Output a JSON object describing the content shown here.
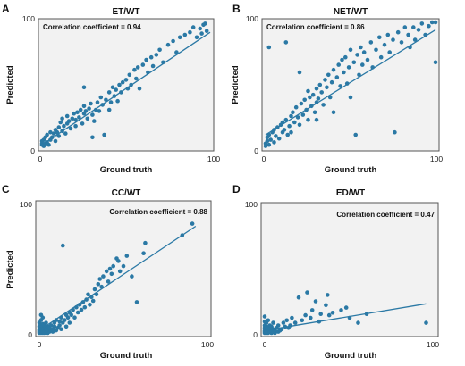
{
  "colors": {
    "point": "#2b79a5",
    "line": "#2b79a5",
    "plot_background": "#f2f2f2",
    "frame": "#555555"
  },
  "chart_data": [
    {
      "type": "scatter",
      "panel_label": "A",
      "title": "ET/WT",
      "xlabel": "Ground truth",
      "ylabel": "Predicted",
      "xlim": [
        0,
        100
      ],
      "ylim": [
        0,
        100
      ],
      "x_ticks": [
        "0",
        "100"
      ],
      "y_ticks": [
        "0",
        "100"
      ],
      "annotation": "Correlation coefficient = 0.94",
      "annotation_position": "top-left",
      "grid": false,
      "fit_line": {
        "x": [
          0,
          100
        ],
        "y": [
          2,
          92
        ]
      },
      "points": [
        [
          0,
          2
        ],
        [
          0,
          3
        ],
        [
          0,
          5
        ],
        [
          1,
          1
        ],
        [
          1,
          6
        ],
        [
          2,
          3
        ],
        [
          2,
          8
        ],
        [
          3,
          4
        ],
        [
          3,
          10
        ],
        [
          4,
          2
        ],
        [
          5,
          6
        ],
        [
          5,
          12
        ],
        [
          6,
          8
        ],
        [
          7,
          11
        ],
        [
          8,
          14
        ],
        [
          8,
          5
        ],
        [
          9,
          12
        ],
        [
          10,
          16
        ],
        [
          10,
          9
        ],
        [
          11,
          20
        ],
        [
          12,
          13
        ],
        [
          13,
          17
        ],
        [
          14,
          11
        ],
        [
          15,
          19
        ],
        [
          15,
          25
        ],
        [
          16,
          21
        ],
        [
          17,
          15
        ],
        [
          18,
          23
        ],
        [
          19,
          27
        ],
        [
          20,
          22
        ],
        [
          20,
          17
        ],
        [
          21,
          28
        ],
        [
          22,
          24
        ],
        [
          23,
          30
        ],
        [
          24,
          19
        ],
        [
          25,
          27
        ],
        [
          25,
          33
        ],
        [
          26,
          29
        ],
        [
          27,
          23
        ],
        [
          28,
          31
        ],
        [
          29,
          35
        ],
        [
          30,
          26
        ],
        [
          30,
          8
        ],
        [
          31,
          21
        ],
        [
          32,
          30
        ],
        [
          33,
          36
        ],
        [
          34,
          29
        ],
        [
          35,
          40
        ],
        [
          36,
          34
        ],
        [
          37,
          10
        ],
        [
          38,
          38
        ],
        [
          40,
          44
        ],
        [
          40,
          30
        ],
        [
          41,
          36
        ],
        [
          42,
          48
        ],
        [
          43,
          41
        ],
        [
          44,
          46
        ],
        [
          45,
          37
        ],
        [
          46,
          50
        ],
        [
          47,
          44
        ],
        [
          48,
          52
        ],
        [
          50,
          54
        ],
        [
          51,
          47
        ],
        [
          52,
          58
        ],
        [
          53,
          50
        ],
        [
          55,
          62
        ],
        [
          56,
          55
        ],
        [
          57,
          64
        ],
        [
          58,
          47
        ],
        [
          60,
          66
        ],
        [
          62,
          70
        ],
        [
          63,
          60
        ],
        [
          65,
          72
        ],
        [
          66,
          65
        ],
        [
          68,
          74
        ],
        [
          70,
          78
        ],
        [
          72,
          68
        ],
        [
          75,
          82
        ],
        [
          78,
          85
        ],
        [
          80,
          76
        ],
        [
          82,
          88
        ],
        [
          85,
          90
        ],
        [
          88,
          92
        ],
        [
          90,
          96
        ],
        [
          92,
          88
        ],
        [
          94,
          95
        ],
        [
          95,
          91
        ],
        [
          96,
          98
        ],
        [
          97,
          99
        ],
        [
          98,
          93
        ],
        [
          25,
          48
        ],
        [
          12,
          23
        ]
      ]
    },
    {
      "type": "scatter",
      "panel_label": "B",
      "title": "NET/WT",
      "xlabel": "Ground truth",
      "ylabel": "Predicted",
      "xlim": [
        0,
        100
      ],
      "ylim": [
        0,
        100
      ],
      "x_ticks": [
        "0",
        "100"
      ],
      "y_ticks": [
        "0",
        "100"
      ],
      "annotation": "Correlation coefficient = 0.86",
      "annotation_position": "top-left",
      "grid": false,
      "fit_line": {
        "x": [
          0,
          100
        ],
        "y": [
          10,
          94
        ]
      },
      "points": [
        [
          0,
          1
        ],
        [
          0,
          3
        ],
        [
          1,
          5
        ],
        [
          1,
          8
        ],
        [
          2,
          2
        ],
        [
          2,
          10
        ],
        [
          3,
          6
        ],
        [
          4,
          12
        ],
        [
          5,
          4
        ],
        [
          5,
          14
        ],
        [
          6,
          9
        ],
        [
          7,
          16
        ],
        [
          8,
          7
        ],
        [
          9,
          18
        ],
        [
          10,
          12
        ],
        [
          10,
          20
        ],
        [
          11,
          14
        ],
        [
          12,
          84
        ],
        [
          12,
          22
        ],
        [
          13,
          10
        ],
        [
          14,
          17
        ],
        [
          15,
          25
        ],
        [
          15,
          12
        ],
        [
          16,
          28
        ],
        [
          17,
          20
        ],
        [
          18,
          32
        ],
        [
          19,
          24
        ],
        [
          20,
          18
        ],
        [
          20,
          60
        ],
        [
          21,
          35
        ],
        [
          22,
          26
        ],
        [
          23,
          38
        ],
        [
          24,
          30
        ],
        [
          25,
          22
        ],
        [
          25,
          45
        ],
        [
          26,
          40
        ],
        [
          27,
          33
        ],
        [
          28,
          42
        ],
        [
          29,
          28
        ],
        [
          30,
          47
        ],
        [
          30,
          36
        ],
        [
          31,
          39
        ],
        [
          32,
          50
        ],
        [
          33,
          44
        ],
        [
          34,
          34
        ],
        [
          35,
          54
        ],
        [
          36,
          48
        ],
        [
          37,
          58
        ],
        [
          38,
          40
        ],
        [
          39,
          52
        ],
        [
          40,
          62
        ],
        [
          40,
          28
        ],
        [
          42,
          56
        ],
        [
          43,
          66
        ],
        [
          44,
          49
        ],
        [
          45,
          70
        ],
        [
          46,
          60
        ],
        [
          47,
          72
        ],
        [
          48,
          51
        ],
        [
          49,
          64
        ],
        [
          50,
          78
        ],
        [
          50,
          40
        ],
        [
          52,
          68
        ],
        [
          53,
          10
        ],
        [
          54,
          74
        ],
        [
          55,
          58
        ],
        [
          56,
          80
        ],
        [
          57,
          66
        ],
        [
          58,
          76
        ],
        [
          60,
          70
        ],
        [
          62,
          84
        ],
        [
          63,
          64
        ],
        [
          65,
          78
        ],
        [
          67,
          88
        ],
        [
          68,
          72
        ],
        [
          70,
          82
        ],
        [
          72,
          90
        ],
        [
          73,
          76
        ],
        [
          75,
          86
        ],
        [
          76,
          12
        ],
        [
          78,
          92
        ],
        [
          80,
          84
        ],
        [
          82,
          96
        ],
        [
          84,
          90
        ],
        [
          85,
          80
        ],
        [
          87,
          96
        ],
        [
          88,
          86
        ],
        [
          90,
          94
        ],
        [
          92,
          99
        ],
        [
          94,
          90
        ],
        [
          96,
          97
        ],
        [
          98,
          100
        ],
        [
          100,
          100
        ],
        [
          100,
          68
        ],
        [
          30,
          22
        ],
        [
          2,
          80
        ]
      ]
    },
    {
      "type": "scatter",
      "panel_label": "C",
      "title": "CC/WT",
      "xlabel": "Ground truth",
      "ylabel": "Predicted",
      "xlim": [
        0,
        100
      ],
      "ylim": [
        0,
        100
      ],
      "x_ticks": [
        "0",
        "100"
      ],
      "y_ticks": [
        "0",
        "100"
      ],
      "annotation": "Correlation coefficient = 0.88",
      "annotation_position": "top-right",
      "grid": false,
      "fit_line": {
        "x": [
          0,
          93
        ],
        "y": [
          2,
          83
        ]
      },
      "points": [
        [
          0,
          0
        ],
        [
          0,
          1
        ],
        [
          0,
          2
        ],
        [
          0,
          3
        ],
        [
          0,
          5
        ],
        [
          0,
          8
        ],
        [
          1,
          0
        ],
        [
          1,
          1
        ],
        [
          1,
          2
        ],
        [
          1,
          4
        ],
        [
          1,
          6
        ],
        [
          1,
          10
        ],
        [
          1,
          14
        ],
        [
          2,
          0
        ],
        [
          2,
          1
        ],
        [
          2,
          3
        ],
        [
          2,
          5
        ],
        [
          2,
          7
        ],
        [
          2,
          12
        ],
        [
          3,
          0
        ],
        [
          3,
          2
        ],
        [
          3,
          4
        ],
        [
          3,
          6
        ],
        [
          4,
          1
        ],
        [
          4,
          3
        ],
        [
          4,
          8
        ],
        [
          5,
          0
        ],
        [
          5,
          2
        ],
        [
          5,
          5
        ],
        [
          6,
          1
        ],
        [
          6,
          4
        ],
        [
          7,
          2
        ],
        [
          7,
          6
        ],
        [
          8,
          1
        ],
        [
          8,
          3
        ],
        [
          9,
          5
        ],
        [
          9,
          8
        ],
        [
          10,
          2
        ],
        [
          10,
          10
        ],
        [
          11,
          4
        ],
        [
          12,
          6
        ],
        [
          12,
          9
        ],
        [
          13,
          3
        ],
        [
          13,
          12
        ],
        [
          14,
          68
        ],
        [
          14,
          8
        ],
        [
          15,
          10
        ],
        [
          16,
          5
        ],
        [
          16,
          14
        ],
        [
          17,
          12
        ],
        [
          18,
          8
        ],
        [
          18,
          16
        ],
        [
          19,
          14
        ],
        [
          20,
          18
        ],
        [
          21,
          12
        ],
        [
          22,
          20
        ],
        [
          23,
          16
        ],
        [
          24,
          22
        ],
        [
          25,
          18
        ],
        [
          26,
          24
        ],
        [
          27,
          20
        ],
        [
          28,
          26
        ],
        [
          29,
          30
        ],
        [
          30,
          22
        ],
        [
          31,
          28
        ],
        [
          32,
          25
        ],
        [
          33,
          34
        ],
        [
          34,
          30
        ],
        [
          35,
          38
        ],
        [
          36,
          42
        ],
        [
          37,
          36
        ],
        [
          38,
          44
        ],
        [
          40,
          48
        ],
        [
          41,
          40
        ],
        [
          42,
          50
        ],
        [
          43,
          46
        ],
        [
          44,
          52
        ],
        [
          46,
          58
        ],
        [
          47,
          56
        ],
        [
          48,
          48
        ],
        [
          50,
          52
        ],
        [
          52,
          60
        ],
        [
          55,
          44
        ],
        [
          58,
          24
        ],
        [
          62,
          62
        ],
        [
          63,
          70
        ],
        [
          85,
          76
        ],
        [
          91,
          85
        ]
      ]
    },
    {
      "type": "scatter",
      "panel_label": "D",
      "title": "ED/WT",
      "xlabel": "Ground truth",
      "ylabel": "",
      "xlim": [
        0,
        100
      ],
      "ylim": [
        0,
        100
      ],
      "x_ticks": [
        "0",
        "100"
      ],
      "y_ticks": [
        "0",
        "100"
      ],
      "annotation": "Correlation coefficient = 0.47",
      "annotation_position": "top-right",
      "grid": false,
      "fit_line": {
        "x": [
          0,
          95
        ],
        "y": [
          2,
          23
        ]
      },
      "points": [
        [
          0,
          0
        ],
        [
          0,
          1
        ],
        [
          0,
          2
        ],
        [
          0,
          4
        ],
        [
          0,
          6
        ],
        [
          0,
          9
        ],
        [
          0,
          13
        ],
        [
          1,
          0
        ],
        [
          1,
          1
        ],
        [
          1,
          3
        ],
        [
          1,
          5
        ],
        [
          1,
          8
        ],
        [
          2,
          0
        ],
        [
          2,
          2
        ],
        [
          2,
          4
        ],
        [
          2,
          10
        ],
        [
          3,
          1
        ],
        [
          3,
          3
        ],
        [
          3,
          6
        ],
        [
          4,
          0
        ],
        [
          4,
          2
        ],
        [
          4,
          5
        ],
        [
          5,
          1
        ],
        [
          5,
          3
        ],
        [
          5,
          8
        ],
        [
          6,
          0
        ],
        [
          6,
          2
        ],
        [
          7,
          4
        ],
        [
          8,
          1
        ],
        [
          8,
          6
        ],
        [
          9,
          2
        ],
        [
          10,
          3
        ],
        [
          11,
          8
        ],
        [
          12,
          5
        ],
        [
          13,
          10
        ],
        [
          14,
          4
        ],
        [
          15,
          6
        ],
        [
          16,
          12
        ],
        [
          18,
          8
        ],
        [
          20,
          28
        ],
        [
          22,
          10
        ],
        [
          24,
          14
        ],
        [
          25,
          32
        ],
        [
          27,
          12
        ],
        [
          28,
          18
        ],
        [
          30,
          25
        ],
        [
          32,
          9
        ],
        [
          33,
          15
        ],
        [
          36,
          22
        ],
        [
          37,
          30
        ],
        [
          38,
          14
        ],
        [
          40,
          16
        ],
        [
          45,
          18
        ],
        [
          48,
          20
        ],
        [
          50,
          12
        ],
        [
          55,
          8
        ],
        [
          60,
          15
        ],
        [
          95,
          8
        ]
      ]
    }
  ]
}
